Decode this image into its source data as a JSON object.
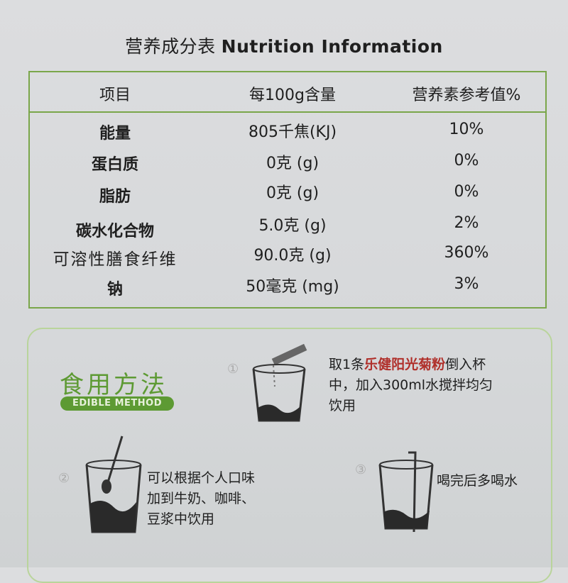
{
  "title": {
    "cn": "营养成分表",
    "en": "Nutrition Information"
  },
  "table": {
    "headers": [
      "项目",
      "每100g含量",
      "营养素参考值%"
    ],
    "rows": [
      {
        "item": "能量",
        "amount": "805千焦(KJ)",
        "nrv": "10%"
      },
      {
        "item": "蛋白质",
        "amount": "0克 (g)",
        "nrv": "0%"
      },
      {
        "item": "脂肪",
        "amount": "0克 (g)",
        "nrv": "0%"
      },
      {
        "item": "碳水化合物",
        "amount": "5.0克 (g)",
        "nrv": "2%"
      },
      {
        "item": "可溶性膳食纤维",
        "amount": "90.0克 (g)",
        "nrv": "360%"
      },
      {
        "item": "钠",
        "amount": "50毫克 (mg)",
        "nrv": "3%"
      }
    ]
  },
  "method": {
    "title_cn": "食用方法",
    "title_en": "EDIBLE METHOD",
    "steps": [
      {
        "num": "①",
        "pre": "取1条",
        "brand": "乐健阳光菊粉",
        "post": "倒入杯",
        "line2": "中，加入300ml水搅拌均匀",
        "line3": "饮用"
      },
      {
        "num": "②",
        "line1": "可以根据个人口味",
        "line2": "加到牛奶、咖啡、",
        "line3": "豆浆中饮用"
      },
      {
        "num": "③",
        "line1": "喝完后多喝水"
      }
    ]
  },
  "colors": {
    "border": "#7aa64a",
    "accent": "#5d9a33",
    "brand_red": "#b0302b"
  }
}
